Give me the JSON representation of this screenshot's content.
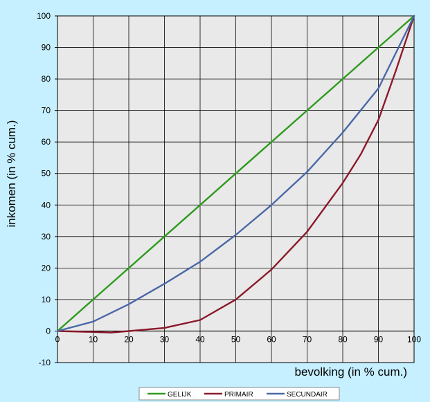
{
  "chart_data": {
    "type": "line",
    "title": "",
    "xlabel": "bevolking (in % cum.)",
    "ylabel": "inkomen (in % cum.)",
    "xlim": [
      0,
      100
    ],
    "ylim": [
      -10,
      100
    ],
    "x_ticks": [
      0,
      10,
      20,
      30,
      40,
      50,
      60,
      70,
      80,
      90,
      100
    ],
    "y_ticks": [
      -10,
      0,
      10,
      20,
      30,
      40,
      50,
      60,
      70,
      80,
      90,
      100
    ],
    "grid": true,
    "legend_position": "bottom-center",
    "series": [
      {
        "name": "GELIJK",
        "color": "#2e9a1e",
        "x": [
          0,
          10,
          20,
          30,
          40,
          50,
          60,
          70,
          80,
          90,
          100
        ],
        "y": [
          0,
          10,
          20,
          30,
          40,
          50,
          60,
          70,
          80,
          90,
          100
        ]
      },
      {
        "name": "PRIMAIR",
        "color": "#8b1a2a",
        "x": [
          0,
          10,
          15,
          20,
          30,
          40,
          50,
          60,
          70,
          80,
          85,
          90,
          95,
          100
        ],
        "y": [
          0,
          -0.3,
          -0.5,
          0,
          1,
          3.5,
          10,
          19.5,
          31.5,
          47,
          56,
          67,
          83,
          100
        ]
      },
      {
        "name": "SECUNDAIR",
        "color": "#4a68a8",
        "x": [
          0,
          10,
          20,
          30,
          40,
          50,
          60,
          70,
          80,
          90,
          100
        ],
        "y": [
          0,
          3,
          8.5,
          15,
          22,
          30.5,
          40,
          50.5,
          63,
          77,
          100
        ]
      }
    ]
  }
}
